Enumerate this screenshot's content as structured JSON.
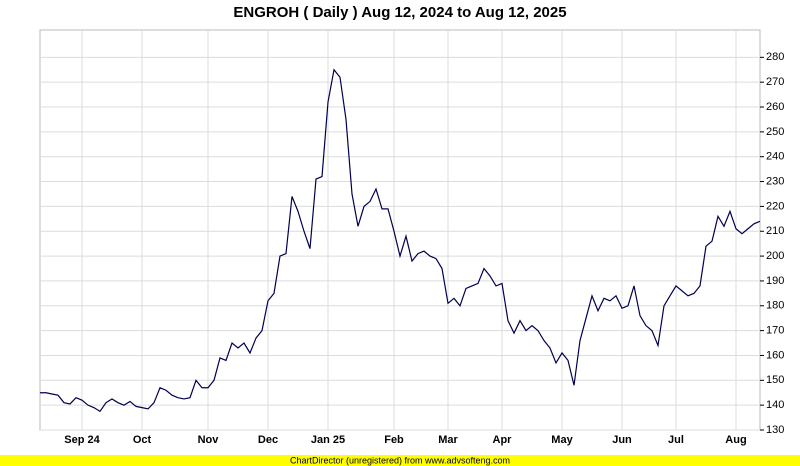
{
  "chart_data": {
    "type": "line",
    "title": "ENGROH ( Daily ) Aug 12, 2024 to Aug 12, 2025",
    "footer": "ChartDirector (unregistered) from www.advsofteng.com",
    "color": "#000050",
    "grid": true,
    "ylim": [
      130,
      291
    ],
    "yticks": [
      130,
      140,
      150,
      160,
      170,
      180,
      190,
      200,
      210,
      220,
      230,
      240,
      250,
      260,
      270,
      280
    ],
    "categories": [
      null,
      null,
      null,
      null,
      null,
      null,
      null,
      "Sep 24",
      null,
      null,
      null,
      null,
      null,
      null,
      null,
      null,
      null,
      "Oct",
      null,
      null,
      null,
      null,
      null,
      null,
      null,
      null,
      null,
      null,
      "Nov",
      null,
      null,
      null,
      null,
      null,
      null,
      null,
      null,
      null,
      "Dec",
      null,
      null,
      null,
      null,
      null,
      null,
      null,
      null,
      null,
      "Jan 25",
      null,
      null,
      null,
      null,
      null,
      null,
      null,
      null,
      null,
      null,
      "Feb",
      null,
      null,
      null,
      null,
      null,
      null,
      null,
      null,
      "Mar",
      null,
      null,
      null,
      null,
      null,
      null,
      null,
      null,
      "Apr",
      null,
      null,
      null,
      null,
      null,
      null,
      null,
      null,
      null,
      "May",
      null,
      null,
      null,
      null,
      null,
      null,
      null,
      null,
      null,
      "Jun",
      null,
      null,
      null,
      null,
      null,
      null,
      null,
      null,
      "Jul",
      null,
      null,
      null,
      null,
      null,
      null,
      null,
      null,
      null,
      "Aug",
      null,
      null,
      null,
      null
    ],
    "values": [
      145,
      145,
      144.5,
      144,
      141,
      140.5,
      143,
      142,
      140,
      139,
      137.5,
      141,
      142.5,
      141,
      140,
      141.5,
      139.5,
      139,
      138.5,
      141,
      147,
      146,
      144,
      143,
      142.5,
      143,
      150,
      147,
      147,
      150,
      159,
      158,
      165,
      163,
      165,
      161,
      167,
      170,
      182,
      185,
      200,
      201,
      224,
      218,
      210,
      203,
      231,
      232,
      262,
      275,
      272,
      255,
      225,
      212,
      220,
      222,
      227,
      219,
      219,
      210,
      200,
      208,
      198,
      201,
      202,
      200,
      199,
      195,
      181,
      183,
      180,
      187,
      188,
      189,
      195,
      192,
      188,
      189,
      174,
      169,
      174,
      170,
      172,
      170,
      166,
      163,
      157,
      161,
      158,
      148,
      166,
      175,
      184,
      178,
      183,
      182,
      184,
      179,
      180,
      188,
      176,
      172,
      170,
      164,
      180,
      184,
      188,
      186,
      184,
      185,
      188,
      204,
      206,
      216,
      212,
      218,
      211,
      209,
      211,
      213,
      214
    ]
  }
}
